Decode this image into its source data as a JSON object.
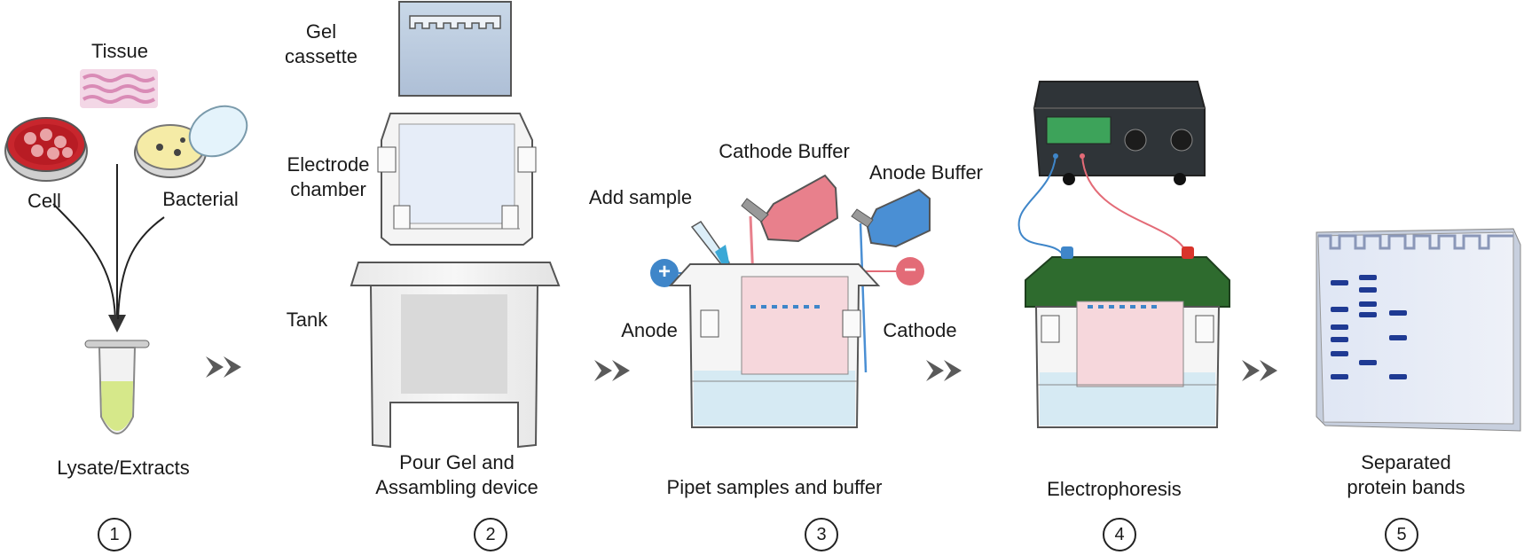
{
  "panel1": {
    "tissue_label": "Tissue",
    "cell_label": "Cell",
    "bacterial_label": "Bacterial",
    "caption": "Lysate/Extracts",
    "step": "1"
  },
  "panel2": {
    "gel_cassette_label": [
      "Gel",
      "cassette"
    ],
    "electrode_chamber_label": [
      "Electrode",
      "chamber"
    ],
    "tank_label": "Tank",
    "caption": [
      "Pour Gel and",
      "Assambling device"
    ],
    "step": "2"
  },
  "panel3": {
    "cathode_buffer_label": "Cathode Buffer",
    "anode_buffer_label": "Anode Buffer",
    "add_sample_label": "Add sample",
    "anode_label": "Anode",
    "cathode_label": "Cathode",
    "plus_symbol": "+",
    "minus_symbol": "−",
    "caption": "Pipet samples and buffer",
    "step": "3"
  },
  "panel4": {
    "caption": "Electrophoresis",
    "step": "4"
  },
  "panel5": {
    "caption": [
      "Separated",
      "protein bands"
    ],
    "step": "5"
  },
  "colors": {
    "positive": "#3f86c9",
    "negative": "#e36b77",
    "cathode_buffer": "#e8808c",
    "anode_buffer": "#4a8fd4",
    "gel_pink": "#f6d7dc",
    "buffer_blue": "#d6eaf3",
    "lid_green": "#2e6b2e",
    "band": "#1f3a93",
    "arrow": "#5a5a5a"
  },
  "icons": [
    "petri-dish-icon",
    "tissue-icon",
    "microtube-icon",
    "gel-cassette-icon",
    "electrode-chamber-icon",
    "tank-icon",
    "pipette-icon",
    "buffer-bottle-icon",
    "power-supply-icon",
    "gel-bands-icon",
    "arrow-icon"
  ]
}
